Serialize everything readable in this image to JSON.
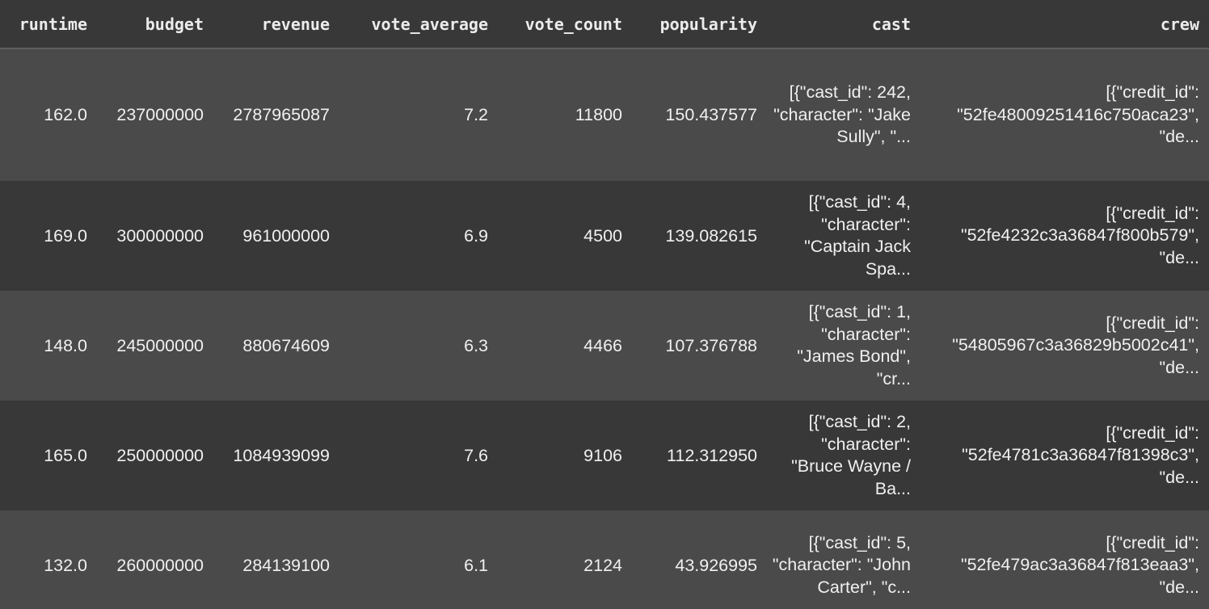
{
  "columns": [
    "runtime",
    "budget",
    "revenue",
    "vote_average",
    "vote_count",
    "popularity",
    "cast",
    "crew"
  ],
  "rows": [
    {
      "runtime": "162.0",
      "budget": "237000000",
      "revenue": "2787965087",
      "vote_average": "7.2",
      "vote_count": "11800",
      "popularity": "150.437577",
      "cast": "[{\"cast_id\": 242, \"character\": \"Jake Sully\", \"...",
      "crew": "[{\"credit_id\": \"52fe48009251416c750aca23\", \"de..."
    },
    {
      "runtime": "169.0",
      "budget": "300000000",
      "revenue": "961000000",
      "vote_average": "6.9",
      "vote_count": "4500",
      "popularity": "139.082615",
      "cast": "[{\"cast_id\": 4, \"character\": \"Captain Jack Spa...",
      "crew": "[{\"credit_id\": \"52fe4232c3a36847f800b579\", \"de..."
    },
    {
      "runtime": "148.0",
      "budget": "245000000",
      "revenue": "880674609",
      "vote_average": "6.3",
      "vote_count": "4466",
      "popularity": "107.376788",
      "cast": "[{\"cast_id\": 1, \"character\": \"James Bond\", \"cr...",
      "crew": "[{\"credit_id\": \"54805967c3a36829b5002c41\", \"de..."
    },
    {
      "runtime": "165.0",
      "budget": "250000000",
      "revenue": "1084939099",
      "vote_average": "7.6",
      "vote_count": "9106",
      "popularity": "112.312950",
      "cast": "[{\"cast_id\": 2, \"character\": \"Bruce Wayne / Ba...",
      "crew": "[{\"credit_id\": \"52fe4781c3a36847f81398c3\", \"de..."
    },
    {
      "runtime": "132.0",
      "budget": "260000000",
      "revenue": "284139100",
      "vote_average": "6.1",
      "vote_count": "2124",
      "popularity": "43.926995",
      "cast": "[{\"cast_id\": 5, \"character\": \"John Carter\", \"c...",
      "crew": "[{\"credit_id\": \"52fe479ac3a36847f813eaa3\", \"de..."
    }
  ]
}
